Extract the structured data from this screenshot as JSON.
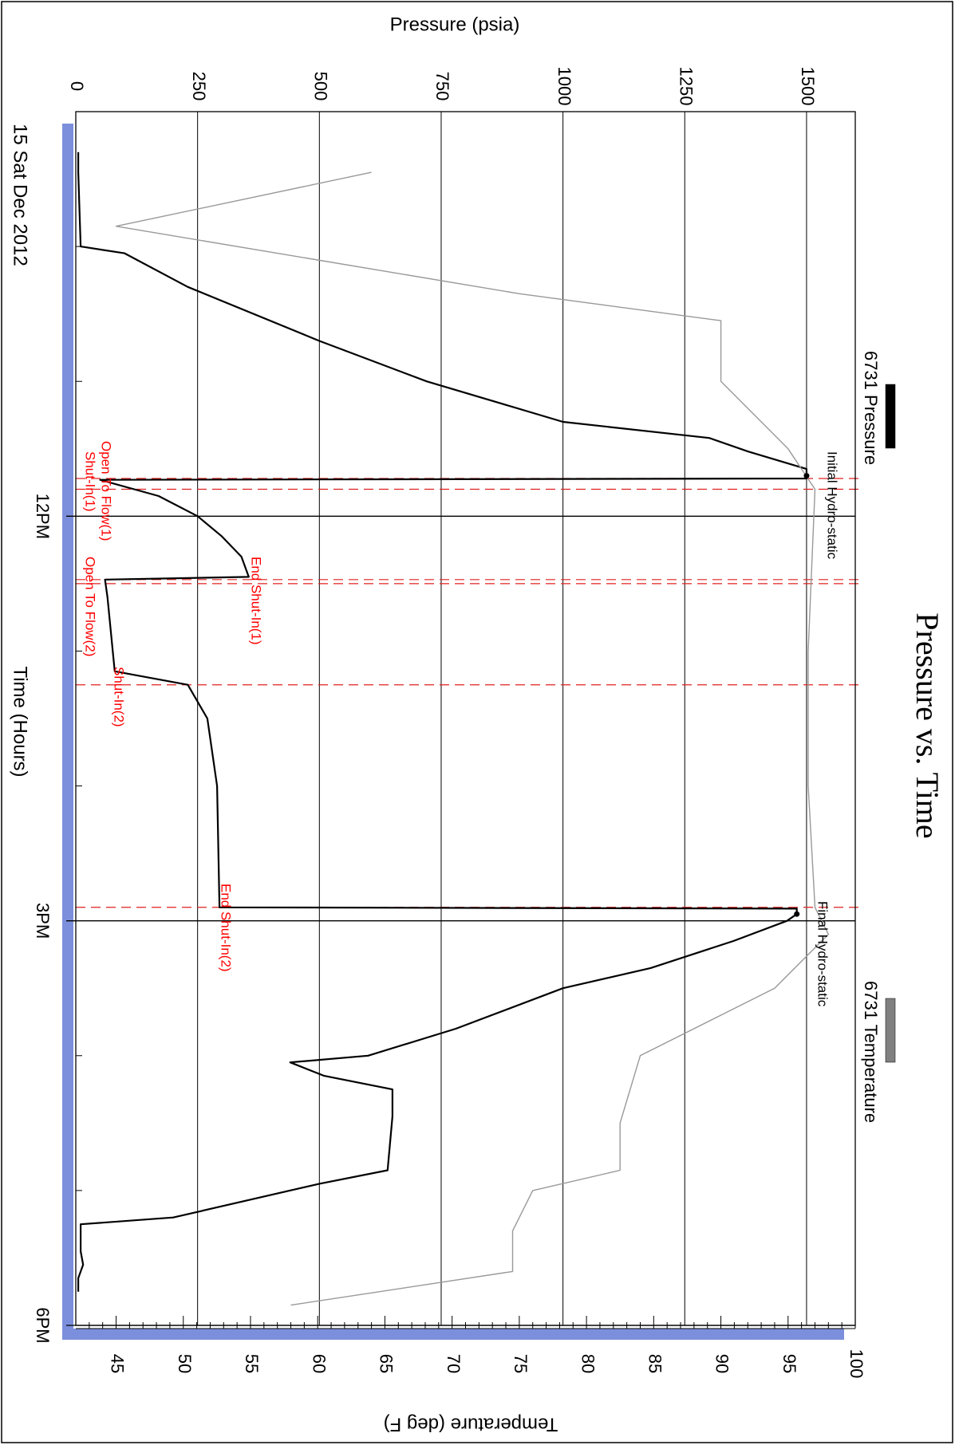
{
  "chart_data": {
    "type": "line",
    "title": "Pressure vs. Time",
    "date_label": "15 Sat Dec 2012",
    "xlabel": "Time (Hours)",
    "ylabel": "Pressure (psia)",
    "y2label": "Temperature (deg F)",
    "x_unit": "hours of day",
    "xlim": [
      9,
      18
    ],
    "x_ticks": [
      {
        "value": 12,
        "label": "12PM"
      },
      {
        "value": 15,
        "label": "3PM"
      },
      {
        "value": 18,
        "label": "6PM"
      }
    ],
    "x_minor_ticks": [
      10,
      11,
      13,
      14,
      16,
      17
    ],
    "ylim": [
      0,
      1600
    ],
    "y_ticks": [
      0,
      250,
      500,
      750,
      1000,
      1250,
      1500
    ],
    "y2lim": [
      42,
      100
    ],
    "y2_ticks": [
      45,
      50,
      55,
      60,
      65,
      70,
      75,
      80,
      85,
      90,
      95,
      100
    ],
    "grid": true,
    "legend_placement": "top-right",
    "series": [
      {
        "name": "6731 Pressure",
        "color": "#000000",
        "axis": "left",
        "points": [
          [
            9.3,
            5
          ],
          [
            9.45,
            5
          ],
          [
            10.0,
            10
          ],
          [
            10.05,
            100
          ],
          [
            10.3,
            230
          ],
          [
            10.7,
            500
          ],
          [
            11.0,
            720
          ],
          [
            11.3,
            1000
          ],
          [
            11.42,
            1300
          ],
          [
            11.52,
            1380
          ],
          [
            11.65,
            1500
          ],
          [
            11.72,
            1500
          ],
          [
            11.73,
            50
          ],
          [
            11.85,
            170
          ],
          [
            12.0,
            250
          ],
          [
            12.15,
            300
          ],
          [
            12.3,
            340
          ],
          [
            12.45,
            355
          ],
          [
            12.47,
            60
          ],
          [
            12.6,
            65
          ],
          [
            13.15,
            80
          ],
          [
            13.25,
            230
          ],
          [
            13.5,
            270
          ],
          [
            14.0,
            290
          ],
          [
            14.9,
            295
          ],
          [
            14.91,
            1480
          ],
          [
            14.95,
            1480
          ],
          [
            15.0,
            1460
          ],
          [
            15.15,
            1350
          ],
          [
            15.35,
            1180
          ],
          [
            15.5,
            1000
          ],
          [
            15.8,
            780
          ],
          [
            16.0,
            600
          ],
          [
            16.05,
            440
          ],
          [
            16.15,
            510
          ],
          [
            16.25,
            650
          ],
          [
            16.45,
            650
          ],
          [
            16.85,
            640
          ],
          [
            16.95,
            500
          ],
          [
            17.2,
            200
          ],
          [
            17.25,
            10
          ],
          [
            17.45,
            10
          ],
          [
            17.55,
            15
          ],
          [
            17.65,
            5
          ],
          [
            17.75,
            5
          ]
        ]
      },
      {
        "name": "6731 Temperature",
        "color": "#999999",
        "axis": "right",
        "points": [
          [
            9.45,
            64
          ],
          [
            9.85,
            45
          ],
          [
            10.1,
            60
          ],
          [
            10.35,
            75
          ],
          [
            10.55,
            90
          ],
          [
            11.0,
            90
          ],
          [
            11.5,
            95
          ],
          [
            11.8,
            97
          ],
          [
            13.0,
            96.5
          ],
          [
            14.0,
            96.5
          ],
          [
            14.9,
            97
          ],
          [
            15.1,
            98
          ],
          [
            15.5,
            94
          ],
          [
            16.0,
            84
          ],
          [
            16.5,
            82.5
          ],
          [
            16.85,
            82.5
          ],
          [
            17.0,
            76
          ],
          [
            17.3,
            74.5
          ],
          [
            17.6,
            74.5
          ],
          [
            17.85,
            58
          ]
        ]
      }
    ],
    "annotations": [
      {
        "x": 11.7,
        "text": "Initial Hydro-static",
        "color": "#000000"
      },
      {
        "x": 11.72,
        "text": "Open To Flow(1)",
        "color": "#ff0000"
      },
      {
        "x": 11.8,
        "text": "Shut-In(1)",
        "color": "#ff0000"
      },
      {
        "x": 12.47,
        "text": "End Shut-In(1)",
        "color": "#ff0000"
      },
      {
        "x": 12.5,
        "text": "Open To Flow(2)",
        "color": "#ff0000"
      },
      {
        "x": 13.25,
        "text": "Shut-In(2)",
        "color": "#ff0000"
      },
      {
        "x": 14.9,
        "text": "End Shut-In(2)",
        "color": "#ff0000"
      },
      {
        "x": 15.0,
        "text": "Final Hydro-static",
        "color": "#000000"
      }
    ]
  }
}
